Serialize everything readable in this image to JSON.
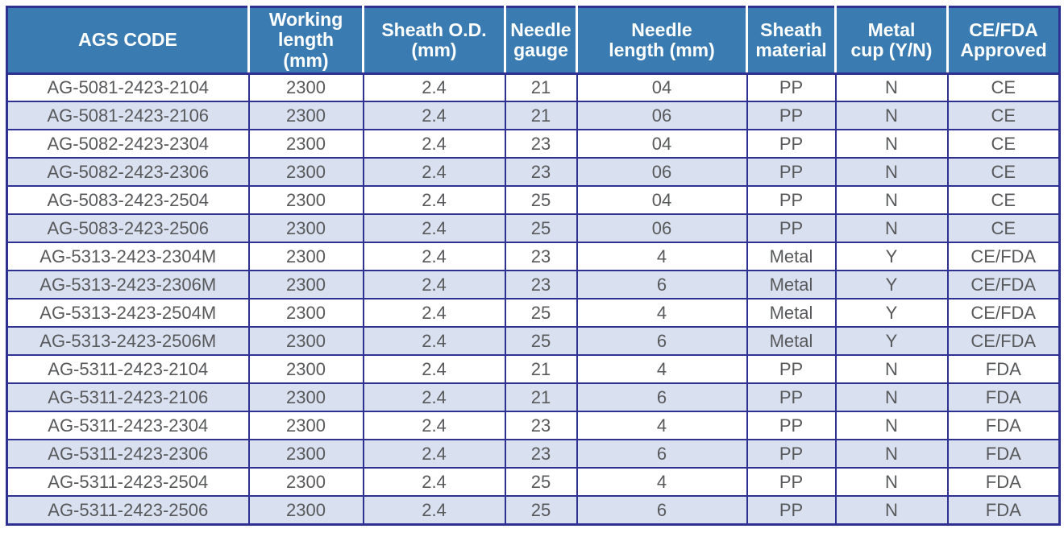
{
  "colors": {
    "border": "#2e3192",
    "header_bg": "#3a7cb1",
    "header_text": "#ffffff",
    "row_bg": "#ffffff",
    "row_alt_bg": "#d9e0ef",
    "body_text": "#58595b"
  },
  "table": {
    "headers": [
      "AGS CODE",
      "Working\nlength\n(mm)",
      "Sheath O.D.\n(mm)",
      "Needle\ngauge",
      "Needle\nlength (mm)",
      "Sheath\nmaterial",
      "Metal\ncup (Y/N)",
      "CE/FDA\nApproved"
    ],
    "header_names": [
      "ags-code",
      "working-length",
      "sheath-od",
      "needle-gauge",
      "needle-length",
      "sheath-material",
      "metal-cup",
      "ce-fda-approved"
    ],
    "rows": [
      [
        "AG-5081-2423-2104",
        "2300",
        "2.4",
        "21",
        "04",
        "PP",
        "N",
        "CE"
      ],
      [
        "AG-5081-2423-2106",
        "2300",
        "2.4",
        "21",
        "06",
        "PP",
        "N",
        "CE"
      ],
      [
        "AG-5082-2423-2304",
        "2300",
        "2.4",
        "23",
        "04",
        "PP",
        "N",
        "CE"
      ],
      [
        "AG-5082-2423-2306",
        "2300",
        "2.4",
        "23",
        "06",
        "PP",
        "N",
        "CE"
      ],
      [
        "AG-5083-2423-2504",
        "2300",
        "2.4",
        "25",
        "04",
        "PP",
        "N",
        "CE"
      ],
      [
        "AG-5083-2423-2506",
        "2300",
        "2.4",
        "25",
        "06",
        "PP",
        "N",
        "CE"
      ],
      [
        "AG-5313-2423-2304M",
        "2300",
        "2.4",
        "23",
        "4",
        "Metal",
        "Y",
        "CE/FDA"
      ],
      [
        "AG-5313-2423-2306M",
        "2300",
        "2.4",
        "23",
        "6",
        "Metal",
        "Y",
        "CE/FDA"
      ],
      [
        "AG-5313-2423-2504M",
        "2300",
        "2.4",
        "25",
        "4",
        "Metal",
        "Y",
        "CE/FDA"
      ],
      [
        "AG-5313-2423-2506M",
        "2300",
        "2.4",
        "25",
        "6",
        "Metal",
        "Y",
        "CE/FDA"
      ],
      [
        "AG-5311-2423-2104",
        "2300",
        "2.4",
        "21",
        "4",
        "PP",
        "N",
        "FDA"
      ],
      [
        "AG-5311-2423-2106",
        "2300",
        "2.4",
        "21",
        "6",
        "PP",
        "N",
        "FDA"
      ],
      [
        "AG-5311-2423-2304",
        "2300",
        "2.4",
        "23",
        "4",
        "PP",
        "N",
        "FDA"
      ],
      [
        "AG-5311-2423-2306",
        "2300",
        "2.4",
        "23",
        "6",
        "PP",
        "N",
        "FDA"
      ],
      [
        "AG-5311-2423-2504",
        "2300",
        "2.4",
        "25",
        "4",
        "PP",
        "N",
        "FDA"
      ],
      [
        "AG-5311-2423-2506",
        "2300",
        "2.4",
        "25",
        "6",
        "PP",
        "N",
        "FDA"
      ]
    ]
  }
}
